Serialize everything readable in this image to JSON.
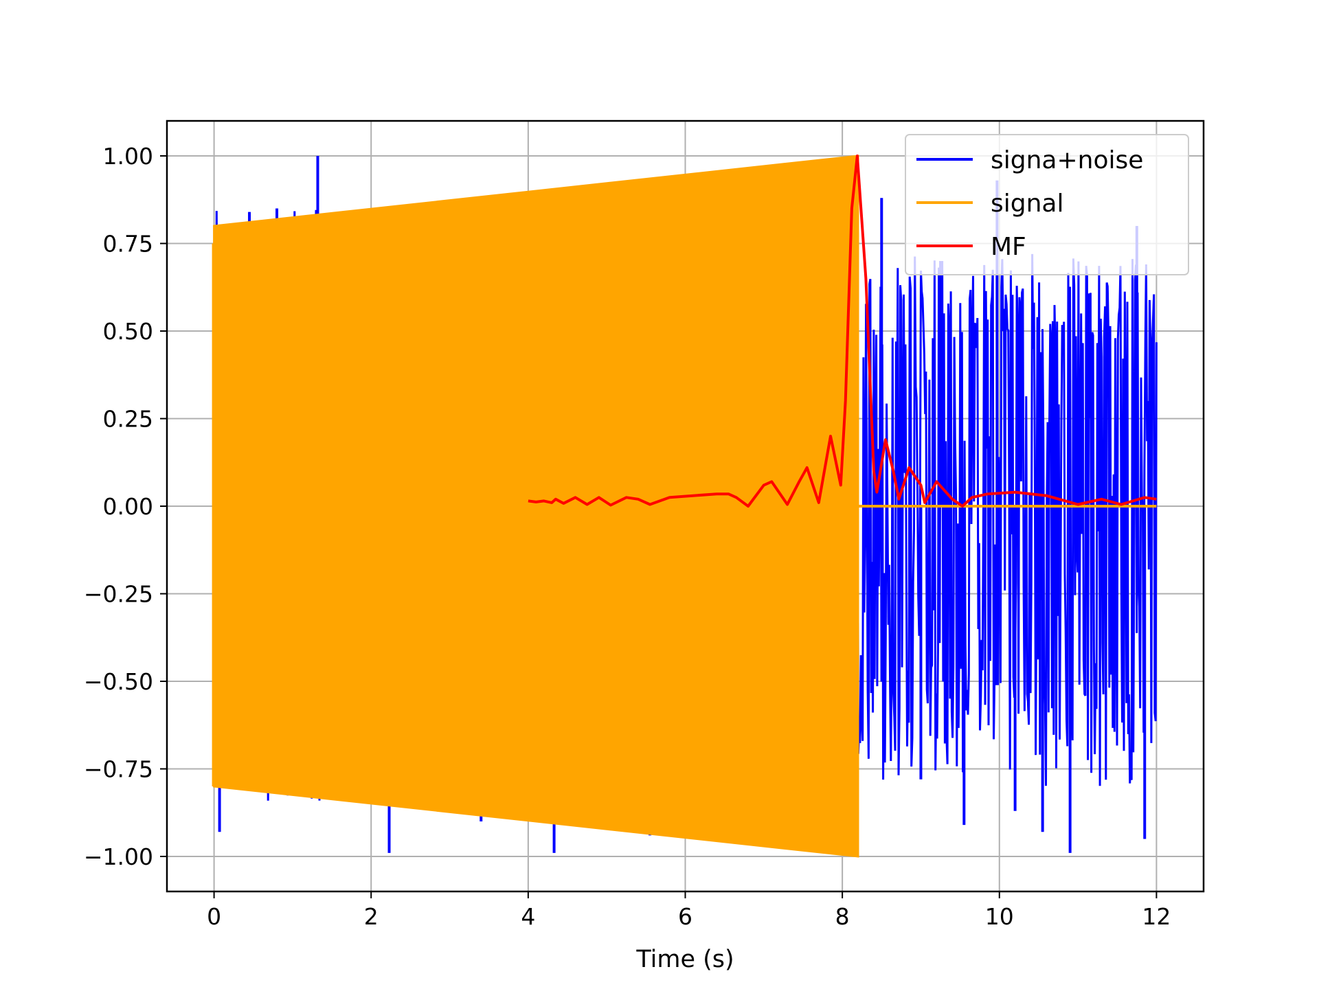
{
  "chart_data": {
    "type": "line",
    "title": "",
    "xlabel": "Time (s)",
    "ylabel": "",
    "xlim": [
      -0.6,
      12.6
    ],
    "ylim": [
      -1.1,
      1.1
    ],
    "xticks": [
      0,
      2,
      4,
      6,
      8,
      10,
      12
    ],
    "xtick_labels": [
      "0",
      "2",
      "4",
      "6",
      "8",
      "10",
      "12"
    ],
    "yticks": [
      1.0,
      0.75,
      0.5,
      0.25,
      0.0,
      -0.25,
      -0.5,
      -0.75,
      -1.0
    ],
    "ytick_labels": [
      "1.00",
      "0.75",
      "0.50",
      "0.25",
      "0.00",
      "−0.25",
      "−0.50",
      "−0.75",
      "−1.00"
    ],
    "grid": true,
    "legend_position": "top-right",
    "series": [
      {
        "name": "signa+noise",
        "color": "#0000ff",
        "x_range": [
          0,
          12
        ],
        "description_values": {
          "noise_band": [
            -0.5,
            0.65
          ],
          "spikes": [
            {
              "x": 0.07,
              "y": -0.93
            },
            {
              "x": 0.45,
              "y": 0.84
            },
            {
              "x": 0.8,
              "y": 0.85
            },
            {
              "x": 1.32,
              "y": 1.0
            },
            {
              "x": 2.23,
              "y": -0.99
            },
            {
              "x": 3.4,
              "y": -0.9
            },
            {
              "x": 4.3,
              "y": 0.9
            },
            {
              "x": 4.33,
              "y": -0.99
            },
            {
              "x": 5.45,
              "y": -0.92
            },
            {
              "x": 5.55,
              "y": 0.92
            },
            {
              "x": 5.55,
              "y": -0.94
            },
            {
              "x": 8.5,
              "y": 0.88
            },
            {
              "x": 9.0,
              "y": -0.78
            },
            {
              "x": 9.25,
              "y": 0.7
            },
            {
              "x": 9.55,
              "y": -0.91
            },
            {
              "x": 9.97,
              "y": 0.93
            },
            {
              "x": 10.2,
              "y": -0.87
            },
            {
              "x": 10.55,
              "y": -0.93
            },
            {
              "x": 10.9,
              "y": -0.99
            },
            {
              "x": 11.75,
              "y": 0.8
            },
            {
              "x": 11.85,
              "y": -0.95
            }
          ]
        }
      },
      {
        "name": "signal",
        "color": "#ffa500",
        "envelope": [
          {
            "x": 0.0,
            "amplitude": 0.8
          },
          {
            "x": 8.2,
            "amplitude": 1.0
          }
        ],
        "after_end_value": 0.0,
        "x_range": [
          0,
          12
        ]
      },
      {
        "name": "MF",
        "color": "#ff0000",
        "points": [
          [
            4.0,
            0.015
          ],
          [
            4.1,
            0.012
          ],
          [
            4.2,
            0.015
          ],
          [
            4.3,
            0.01
          ],
          [
            4.35,
            0.02
          ],
          [
            4.45,
            0.008
          ],
          [
            4.6,
            0.025
          ],
          [
            4.75,
            0.005
          ],
          [
            4.9,
            0.025
          ],
          [
            5.05,
            0.003
          ],
          [
            5.25,
            0.025
          ],
          [
            5.4,
            0.02
          ],
          [
            5.55,
            0.005
          ],
          [
            5.8,
            0.025
          ],
          [
            6.1,
            0.03
          ],
          [
            6.4,
            0.035
          ],
          [
            6.55,
            0.035
          ],
          [
            6.65,
            0.025
          ],
          [
            6.8,
            0.0
          ],
          [
            7.0,
            0.06
          ],
          [
            7.1,
            0.07
          ],
          [
            7.3,
            0.005
          ],
          [
            7.45,
            0.07
          ],
          [
            7.55,
            0.11
          ],
          [
            7.7,
            0.01
          ],
          [
            7.85,
            0.2
          ],
          [
            7.98,
            0.06
          ],
          [
            8.04,
            0.3
          ],
          [
            8.12,
            0.85
          ],
          [
            8.19,
            1.0
          ],
          [
            8.3,
            0.65
          ],
          [
            8.4,
            0.1
          ],
          [
            8.44,
            0.04
          ],
          [
            8.55,
            0.19
          ],
          [
            8.65,
            0.1
          ],
          [
            8.72,
            0.02
          ],
          [
            8.85,
            0.11
          ],
          [
            9.0,
            0.06
          ],
          [
            9.05,
            0.01
          ],
          [
            9.2,
            0.07
          ],
          [
            9.4,
            0.02
          ],
          [
            9.53,
            0.0
          ],
          [
            9.65,
            0.025
          ],
          [
            9.85,
            0.035
          ],
          [
            10.2,
            0.04
          ],
          [
            10.6,
            0.03
          ],
          [
            11.0,
            0.005
          ],
          [
            11.3,
            0.02
          ],
          [
            11.55,
            0.005
          ],
          [
            11.85,
            0.025
          ],
          [
            12.0,
            0.02
          ]
        ]
      }
    ]
  }
}
